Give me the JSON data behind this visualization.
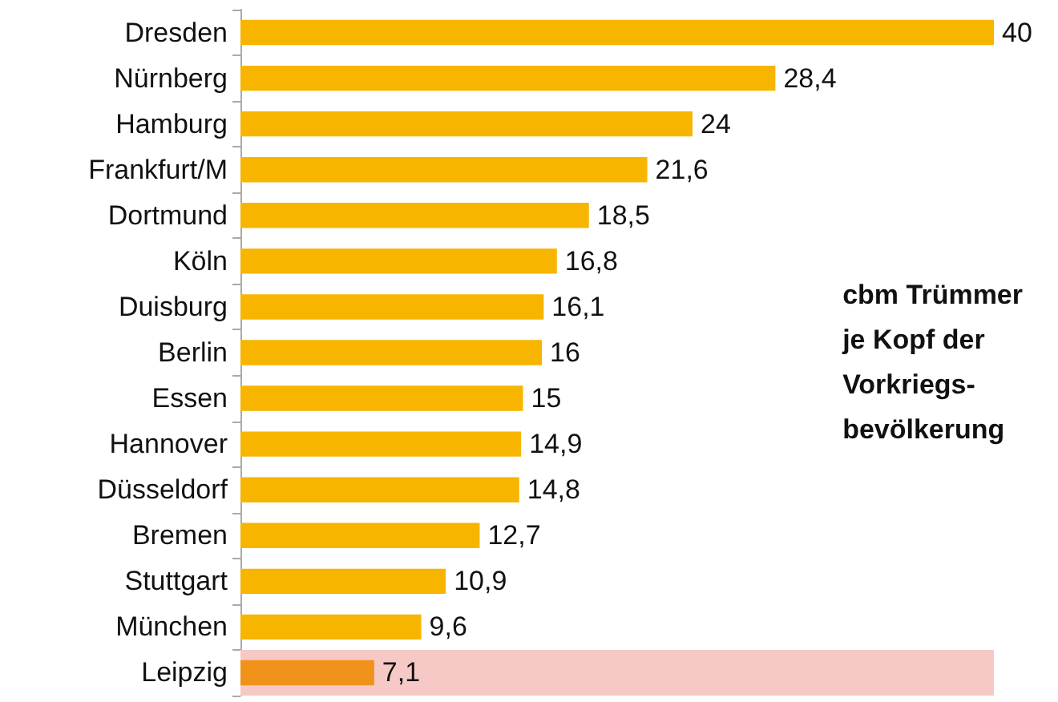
{
  "chart_data": {
    "type": "bar",
    "orientation": "horizontal",
    "categories": [
      "Dresden",
      "Nürnberg",
      "Hamburg",
      "Frankfurt/M",
      "Dortmund",
      "Köln",
      "Duisburg",
      "Berlin",
      "Essen",
      "Hannover",
      "Düsseldorf",
      "Bremen",
      "Stuttgart",
      "München",
      "Leipzig"
    ],
    "values": [
      40,
      28.4,
      24,
      21.6,
      18.5,
      16.8,
      16.1,
      16,
      15,
      14.9,
      14.8,
      12.7,
      10.9,
      9.6,
      7.1
    ],
    "value_labels": [
      "40",
      "28,4",
      "24",
      "21,6",
      "18,5",
      "16,8",
      "16,1",
      "16",
      "15",
      "14,9",
      "14,8",
      "12,7",
      "10,9",
      "9,6",
      "7,1"
    ],
    "colors": [
      "#f7b500",
      "#f7b500",
      "#f7b500",
      "#f7b500",
      "#f7b500",
      "#f7b500",
      "#f7b500",
      "#f7b500",
      "#f7b500",
      "#f7b500",
      "#f7b500",
      "#f7b500",
      "#f7b500",
      "#f7b500",
      "#f0921a"
    ],
    "bands": [
      {
        "axis": "y",
        "from": "Leipzig",
        "to": "Leipzig",
        "color": "#f6c9c6"
      }
    ],
    "annotations": [
      "cbm Trümmer\nje Kopf der\nVorkriegs-\nbevölkerung"
    ],
    "grid": false
  }
}
